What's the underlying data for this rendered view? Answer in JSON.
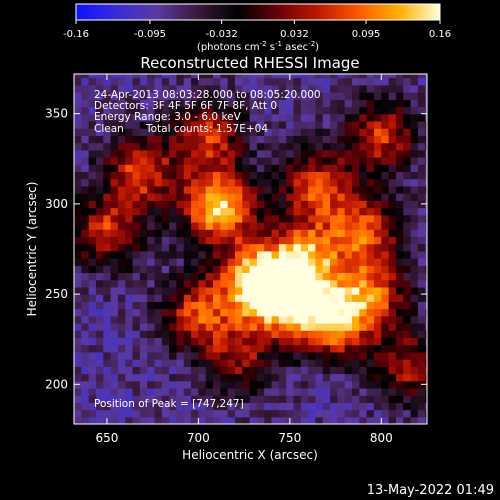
{
  "colors": {
    "background": "#000000",
    "text": "#ffffff",
    "colorbar_stops": [
      "#0a14ff",
      "#3a2bd9",
      "#5a3aa0",
      "#3a1a3a",
      "#000000",
      "#6a0008",
      "#c01800",
      "#ff5a00",
      "#ffb000",
      "#ffffe0"
    ]
  },
  "chart_data": {
    "type": "heatmap",
    "title": "Reconstructed RHESSI Image",
    "xlabel": "Heliocentric X (arcsec)",
    "ylabel": "Heliocentric Y (arcsec)",
    "xlim": [
      632,
      825
    ],
    "ylim": [
      178,
      372
    ],
    "xticks": [
      650,
      700,
      750,
      800
    ],
    "yticks": [
      200,
      250,
      300,
      350
    ],
    "info_lines": [
      "24-Apr-2013 08:03:28.000 to 08:05:20.000",
      "Detectors: 3F 4F 5F 6F 7F 8F, Att 0",
      "Energy Range: 3.0 - 6.0 keV",
      "Clean",
      "Total counts: 1.57E+04"
    ],
    "peak_label": "Position of Peak = [747,247]",
    "peak_position": [
      747,
      247
    ],
    "colorbar": {
      "range": [
        -0.16,
        0.16
      ],
      "ticks": [
        "-0.16",
        "-0.095",
        "-0.032",
        "0.032",
        "0.095",
        "0.16"
      ],
      "unit_prefix": "(photons cm",
      "unit_exp1": "-2",
      "unit_mid": " s",
      "unit_exp2": "-1",
      "unit_mid2": " asec",
      "unit_exp3": "-2",
      "unit_suffix": ")"
    },
    "sources": [
      {
        "x": 745,
        "y": 248,
        "value": 0.16
      },
      {
        "x": 711,
        "y": 299,
        "value": 0.15
      },
      {
        "x": 773,
        "y": 236,
        "value": 0.13
      },
      {
        "x": 758,
        "y": 270,
        "value": 0.1
      },
      {
        "x": 730,
        "y": 260,
        "value": 0.09
      },
      {
        "x": 790,
        "y": 285,
        "value": 0.08
      },
      {
        "x": 668,
        "y": 318,
        "value": 0.07
      },
      {
        "x": 705,
        "y": 338,
        "value": 0.06
      },
      {
        "x": 800,
        "y": 338,
        "value": 0.06
      },
      {
        "x": 765,
        "y": 310,
        "value": 0.07
      },
      {
        "x": 650,
        "y": 285,
        "value": 0.06
      },
      {
        "x": 700,
        "y": 240,
        "value": 0.07
      },
      {
        "x": 795,
        "y": 250,
        "value": 0.07
      },
      {
        "x": 815,
        "y": 210,
        "value": 0.04
      },
      {
        "x": 722,
        "y": 215,
        "value": 0.03
      }
    ],
    "background_level": -0.08
  },
  "footer": {
    "timestamp": "13-May-2022 01:49"
  }
}
